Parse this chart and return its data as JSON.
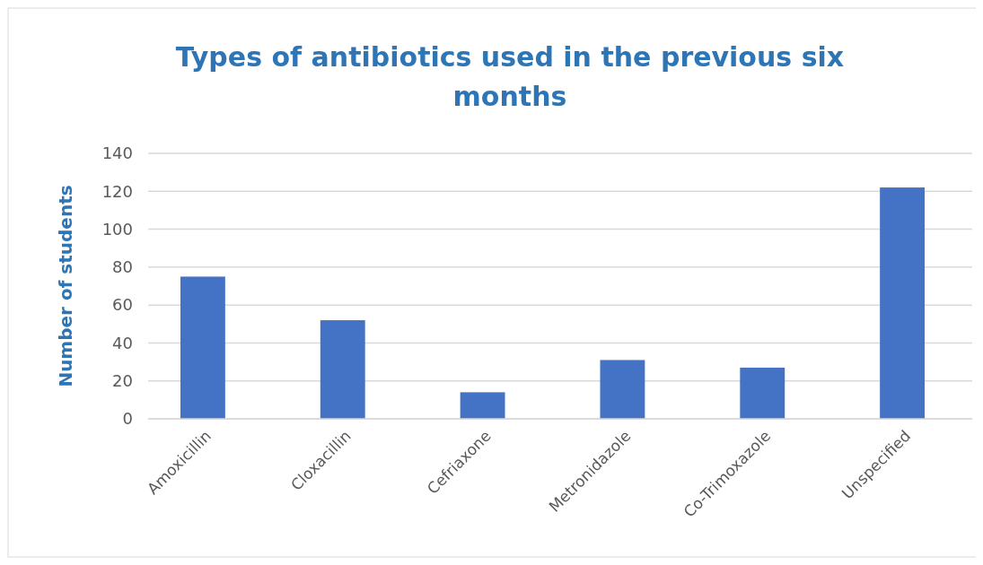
{
  "chart_data": {
    "type": "bar",
    "title": "Types of antibiotics used in the previous six months",
    "ylabel": "Number of students",
    "categories": [
      "Amoxicillin",
      "Cloxacillin",
      "Cefriaxone",
      "Metronidazole",
      "Co-Trimoxazole",
      "Unspecified"
    ],
    "values": [
      75,
      52,
      14,
      31,
      27,
      122
    ],
    "color": "#4472c4",
    "ylim": [
      0,
      140
    ],
    "yticks": [
      0,
      20,
      40,
      60,
      80,
      100,
      120,
      140
    ],
    "grid": "y"
  }
}
